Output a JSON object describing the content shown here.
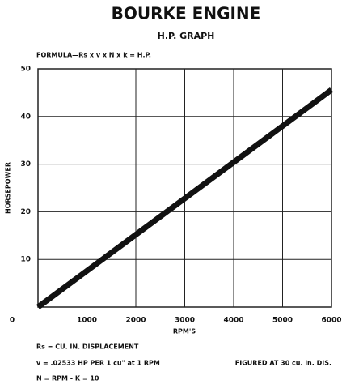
{
  "chart_data": {
    "type": "line",
    "title": "BOURKE ENGINE",
    "subtitle": "H.P. GRAPH",
    "formula": "FORMULA—Rs x v x N x k = H.P.",
    "x_label": "RPM'S",
    "y_label": "HORSEPOWER",
    "notes": [
      "Rs = CU. IN. DISPLACEMENT",
      "v = .02533 HP PER 1 cu\" at 1 RPM",
      "N = RPM - K = 10"
    ],
    "side_note": "FIGURED AT 30 cu. in. DIS.",
    "x": [
      0,
      1000,
      2000,
      3000,
      4000,
      5000,
      6000
    ],
    "series": [
      {
        "name": "H.P.",
        "color": "#111111",
        "values": [
          0,
          7.6,
          15.2,
          22.8,
          30.4,
          38,
          45.6
        ]
      }
    ],
    "xlim": [
      0,
      6000
    ],
    "xticks": [
      0,
      1000,
      2000,
      3000,
      4000,
      5000,
      6000
    ],
    "ylim": [
      0,
      50
    ],
    "yticks": [
      10,
      20,
      30,
      40,
      50
    ],
    "grid": true
  }
}
